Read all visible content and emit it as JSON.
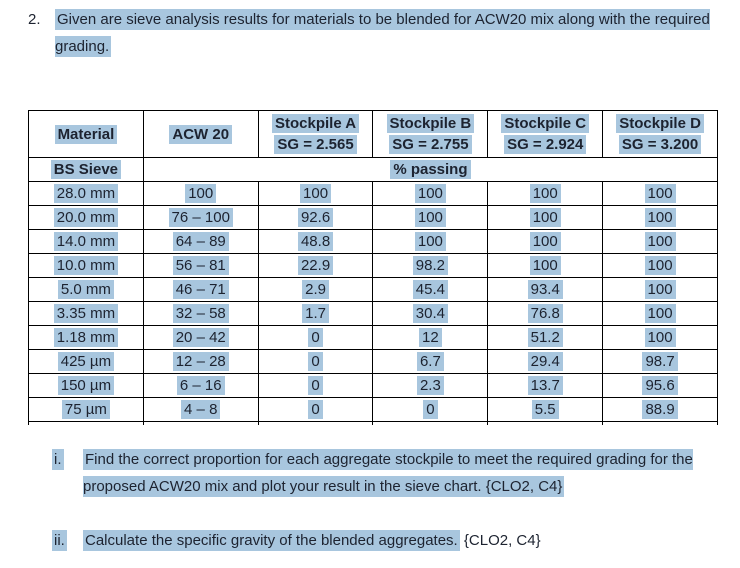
{
  "question": {
    "number": "2.",
    "text": "Given are sieve analysis results for materials to be blended for ACW20 mix along with the required grading."
  },
  "table": {
    "header": {
      "material": "Material",
      "acw": "ACW 20",
      "stockpiles": [
        {
          "name": "Stockpile A",
          "sg": "SG = 2.565"
        },
        {
          "name": "Stockpile B",
          "sg": "SG = 2.755"
        },
        {
          "name": "Stockpile C",
          "sg": "SG = 2.924"
        },
        {
          "name": "Stockpile D",
          "sg": "SG = 3.200"
        }
      ],
      "bs_sieve": "BS Sieve",
      "percent_passing": "% passing"
    },
    "rows": [
      {
        "sieve": "28.0 mm",
        "acw": "100",
        "a": "100",
        "b": "100",
        "c": "100",
        "d": "100"
      },
      {
        "sieve": "20.0 mm",
        "acw": "76 – 100",
        "a": "92.6",
        "b": "100",
        "c": "100",
        "d": "100"
      },
      {
        "sieve": "14.0 mm",
        "acw": "64 – 89",
        "a": "48.8",
        "b": "100",
        "c": "100",
        "d": "100"
      },
      {
        "sieve": "10.0 mm",
        "acw": "56 – 81",
        "a": "22.9",
        "b": "98.2",
        "c": "100",
        "d": "100"
      },
      {
        "sieve": "5.0 mm",
        "acw": "46 – 71",
        "a": "2.9",
        "b": "45.4",
        "c": "93.4",
        "d": "100"
      },
      {
        "sieve": "3.35 mm",
        "acw": "32 – 58",
        "a": "1.7",
        "b": "30.4",
        "c": "76.8",
        "d": "100"
      },
      {
        "sieve": "1.18 mm",
        "acw": "20 – 42",
        "a": "0",
        "b": "12",
        "c": "51.2",
        "d": "100"
      },
      {
        "sieve": "425 µm",
        "acw": "12 – 28",
        "a": "0",
        "b": "6.7",
        "c": "29.4",
        "d": "98.7"
      },
      {
        "sieve": "150 µm",
        "acw": "6 – 16",
        "a": "0",
        "b": "2.3",
        "c": "13.7",
        "d": "95.6"
      },
      {
        "sieve": "75 µm",
        "acw": "4 – 8",
        "a": "0",
        "b": "0",
        "c": "5.5",
        "d": "88.9"
      }
    ]
  },
  "subquestions": [
    {
      "marker": "i.",
      "highlighted_text": "Find the correct proportion for each aggregate stockpile to meet the required grading for the proposed ACW20 mix and plot your result in the sieve chart. {CLO2, C4}",
      "plain_text": ""
    },
    {
      "marker": "ii.",
      "highlighted_text": "Calculate the specific gravity of the blended aggregates.",
      "plain_text": " {CLO2, C4}"
    }
  ],
  "colors": {
    "highlight": "#a8c6de",
    "text": "#1d2330",
    "border": "#000000"
  }
}
